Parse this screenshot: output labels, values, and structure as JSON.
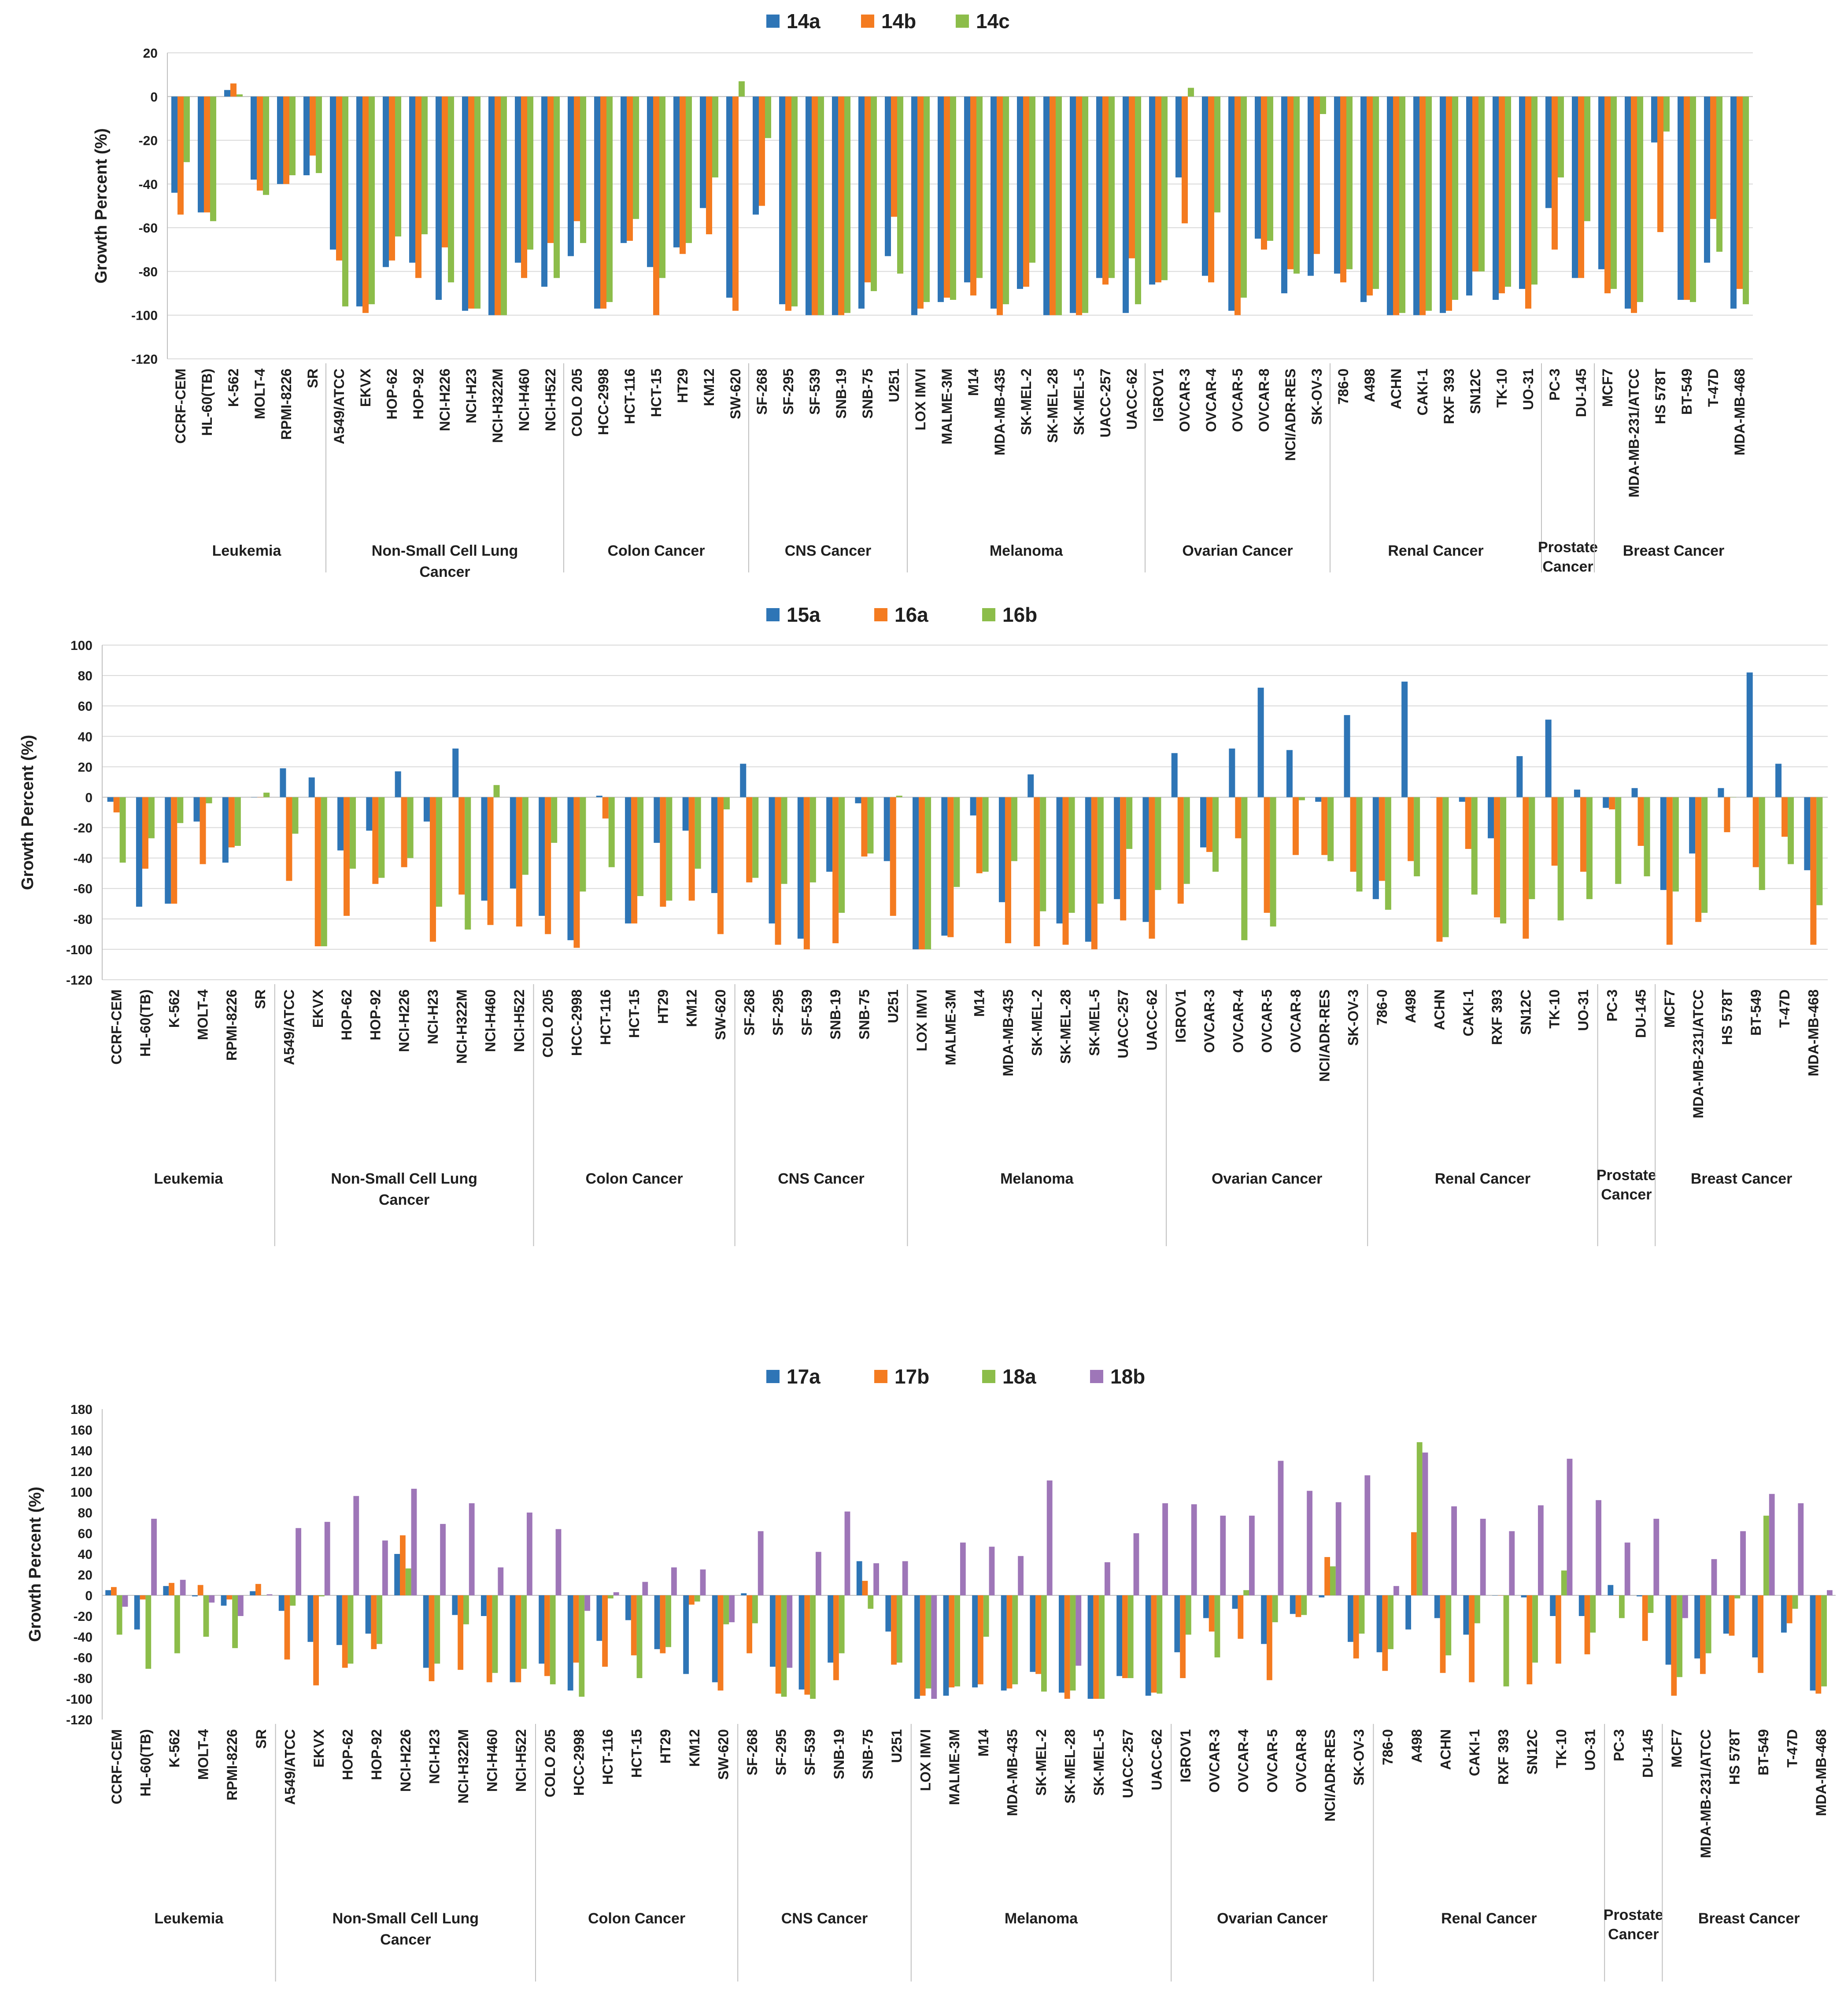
{
  "chart_data": [
    {
      "type": "bar",
      "title": "",
      "ylabel": "Growth Percent (%)",
      "xlabel": "",
      "ylim": [
        -120,
        20
      ],
      "yticks": [
        20,
        0,
        -20,
        -40,
        -60,
        -80,
        -100,
        -120
      ],
      "grid": true,
      "legend_position": "top-center",
      "categories": [
        "CCRF-CEM",
        "HL-60(TB)",
        "K-562",
        "MOLT-4",
        "RPMI-8226",
        "SR",
        "A549/ATCC",
        "EKVX",
        "HOP-62",
        "HOP-92",
        "NCI-H226",
        "NCI-H23",
        "NCI-H322M",
        "NCI-H460",
        "NCI-H522",
        "COLO 205",
        "HCC-2998",
        "HCT-116",
        "HCT-15",
        "HT29",
        "KM12",
        "SW-620",
        "SF-268",
        "SF-295",
        "SF-539",
        "SNB-19",
        "SNB-75",
        "U251",
        "LOX IMVI",
        "MALME-3M",
        "M14",
        "MDA-MB-435",
        "SK-MEL-2",
        "SK-MEL-28",
        "SK-MEL-5",
        "UACC-257",
        "UACC-62",
        "IGROV1",
        "OVCAR-3",
        "OVCAR-4",
        "OVCAR-5",
        "OVCAR-8",
        "NCI/ADR-RES",
        "SK-OV-3",
        "786-0",
        "A498",
        "ACHN",
        "CAKI-1",
        "RXF 393",
        "SN12C",
        "TK-10",
        "UO-31",
        "PC-3",
        "DU-145",
        "MCF7",
        "MDA-MB-231/ATCC",
        "HS 578T",
        "BT-549",
        "T-47D",
        "MDA-MB-468"
      ],
      "groups": [
        {
          "name": "Leukemia",
          "count": 6
        },
        {
          "name": "Non-Small Cell Lung Cancer",
          "count": 9
        },
        {
          "name": "Colon Cancer",
          "count": 7
        },
        {
          "name": "CNS Cancer",
          "count": 6
        },
        {
          "name": "Melanoma",
          "count": 9
        },
        {
          "name": "Ovarian Cancer",
          "count": 7
        },
        {
          "name": "Renal Cancer",
          "count": 8
        },
        {
          "name": "Prostate Cancer",
          "count": 2
        },
        {
          "name": "Breast Cancer",
          "count": 6
        }
      ],
      "series": [
        {
          "name": "14a",
          "color": "#2e75b6",
          "values": [
            -44,
            -53,
            3,
            -38,
            -40,
            -36,
            -70,
            -96,
            -78,
            -76,
            -93,
            -98,
            -100,
            -76,
            -87,
            -73,
            -97,
            -67,
            -78,
            -69,
            -51,
            -92,
            -54,
            -95,
            -100,
            -100,
            -97,
            -73,
            -100,
            -94,
            -85,
            -97,
            -88,
            -100,
            -99,
            -83,
            -99,
            -86,
            -37,
            -82,
            -98,
            -65,
            -90,
            -82,
            -81,
            -94,
            -100,
            -100,
            -99,
            -91,
            -93,
            -88,
            -51,
            -83,
            -79,
            -97,
            -21,
            -93,
            -76,
            -97
          ]
        },
        {
          "name": "14b",
          "color": "#f47b20",
          "values": [
            -54,
            -53,
            6,
            -43,
            -40,
            -27,
            -75,
            -99,
            -75,
            -83,
            -69,
            -97,
            -100,
            -83,
            -67,
            -57,
            -97,
            -66,
            -100,
            -72,
            -63,
            -98,
            -50,
            -98,
            -100,
            -100,
            -85,
            -55,
            -97,
            -92,
            -91,
            -100,
            -87,
            -100,
            -100,
            -86,
            -74,
            -85,
            -58,
            -85,
            -100,
            -70,
            -79,
            -72,
            -85,
            -91,
            -100,
            -100,
            -98,
            -80,
            -90,
            -97,
            -70,
            -83,
            -90,
            -99,
            -62,
            -93,
            -56,
            -88
          ]
        },
        {
          "name": "14c",
          "color": "#8cbd4a",
          "values": [
            -30,
            -57,
            1,
            -45,
            -36,
            -35,
            -96,
            -95,
            -64,
            -63,
            -85,
            -97,
            -100,
            -70,
            -83,
            -67,
            -94,
            -56,
            -83,
            -67,
            -37,
            7,
            -19,
            -96,
            -100,
            -99,
            -89,
            -81,
            -94,
            -93,
            -83,
            -95,
            -76,
            -100,
            -99,
            -83,
            -95,
            -84,
            4,
            -53,
            -92,
            -66,
            -81,
            -8,
            -79,
            -88,
            -99,
            -98,
            -93,
            -80,
            -87,
            -86,
            -37,
            -57,
            -88,
            -94,
            -16,
            -94,
            -71,
            -95
          ]
        }
      ]
    },
    {
      "type": "bar",
      "title": "",
      "ylabel": "Growth Percent (%)",
      "xlabel": "",
      "ylim": [
        -120,
        100
      ],
      "yticks": [
        100,
        80,
        60,
        40,
        20,
        0,
        -20,
        -40,
        -60,
        -80,
        -100,
        -120
      ],
      "grid": true,
      "legend_position": "top-center",
      "categories": [
        "CCRF-CEM",
        "HL-60(TB)",
        "K-562",
        "MOLT-4",
        "RPMI-8226",
        "SR",
        "A549/ATCC",
        "EKVX",
        "HOP-62",
        "HOP-92",
        "NCI-H226",
        "NCI-H23",
        "NCI-H322M",
        "NCI-H460",
        "NCI-H522",
        "COLO 205",
        "HCC-2998",
        "HCT-116",
        "HCT-15",
        "HT29",
        "KM12",
        "SW-620",
        "SF-268",
        "SF-295",
        "SF-539",
        "SNB-19",
        "SNB-75",
        "U251",
        "LOX IMVI",
        "MALME-3M",
        "M14",
        "MDA-MB-435",
        "SK-MEL-2",
        "SK-MEL-28",
        "SK-MEL-5",
        "UACC-257",
        "UACC-62",
        "IGROV1",
        "OVCAR-3",
        "OVCAR-4",
        "OVCAR-5",
        "OVCAR-8",
        "NCI/ADR-RES",
        "SK-OV-3",
        "786-0",
        "A498",
        "ACHN",
        "CAKI-1",
        "RXF 393",
        "SN12C",
        "TK-10",
        "UO-31",
        "PC-3",
        "DU-145",
        "MCF7",
        "MDA-MB-231/ATCC",
        "HS 578T",
        "BT-549",
        "T-47D",
        "MDA-MB-468"
      ],
      "groups": [
        {
          "name": "Leukemia",
          "count": 6
        },
        {
          "name": "Non-Small Cell Lung Cancer",
          "count": 9
        },
        {
          "name": "Colon Cancer",
          "count": 7
        },
        {
          "name": "CNS Cancer",
          "count": 6
        },
        {
          "name": "Melanoma",
          "count": 9
        },
        {
          "name": "Ovarian Cancer",
          "count": 7
        },
        {
          "name": "Renal Cancer",
          "count": 8
        },
        {
          "name": "Prostate Cancer",
          "count": 2
        },
        {
          "name": "Breast Cancer",
          "count": 6
        }
      ],
      "series": [
        {
          "name": "15a",
          "color": "#2e75b6",
          "values": [
            -3,
            -72,
            -70,
            -16,
            -43,
            0,
            19,
            13,
            -35,
            -22,
            17,
            -16,
            32,
            -68,
            -60,
            -78,
            -94,
            1,
            -83,
            -30,
            -22,
            -63,
            22,
            -83,
            -93,
            -49,
            -4,
            -42,
            -100,
            -91,
            -12,
            -69,
            15,
            -83,
            -95,
            -67,
            -82,
            29,
            -33,
            32,
            72,
            31,
            -3,
            54,
            -67,
            76,
            0,
            -3,
            -27,
            27,
            51,
            5,
            -7,
            6,
            -61,
            -37,
            6,
            82,
            22,
            -48
          ]
        },
        {
          "name": "16a",
          "color": "#f47b20",
          "values": [
            -10,
            -47,
            -70,
            -44,
            -33,
            0,
            -55,
            -98,
            -78,
            -57,
            -46,
            -95,
            -64,
            -84,
            -85,
            -90,
            -99,
            -14,
            -83,
            -72,
            -68,
            -90,
            -56,
            -97,
            -100,
            -96,
            -39,
            -78,
            -100,
            -92,
            -50,
            -96,
            -98,
            -97,
            -100,
            -81,
            -93,
            -70,
            -36,
            -27,
            -76,
            -38,
            -38,
            -49,
            -55,
            -42,
            -95,
            -34,
            -79,
            -93,
            -45,
            -49,
            -8,
            -32,
            -97,
            -82,
            -23,
            -46,
            -26,
            -97
          ]
        },
        {
          "name": "16b",
          "color": "#8cbd4a",
          "values": [
            -43,
            -27,
            -17,
            -4,
            -32,
            3,
            -24,
            -98,
            -47,
            -53,
            -40,
            -72,
            -87,
            8,
            -51,
            -30,
            -62,
            -46,
            -65,
            -68,
            -47,
            -8,
            -53,
            -57,
            -56,
            -76,
            -37,
            1,
            -100,
            -59,
            -49,
            -42,
            -75,
            -76,
            -70,
            -34,
            -61,
            -57,
            -49,
            -94,
            -85,
            -2,
            -42,
            -62,
            -74,
            -52,
            -92,
            -64,
            -83,
            -67,
            -81,
            -67,
            -57,
            -52,
            -62,
            -76,
            0,
            -61,
            -44,
            -71
          ]
        }
      ]
    },
    {
      "type": "bar",
      "title": "",
      "ylabel": "Growth Percent (%)",
      "xlabel": "",
      "ylim": [
        -120,
        180
      ],
      "yticks": [
        180,
        160,
        140,
        120,
        100,
        80,
        60,
        40,
        20,
        0,
        -20,
        -40,
        -60,
        -80,
        -100,
        -120
      ],
      "grid": false,
      "legend_position": "top-center",
      "categories": [
        "CCRF-CEM",
        "HL-60(TB)",
        "K-562",
        "MOLT-4",
        "RPMI-8226",
        "SR",
        "A549/ATCC",
        "EKVX",
        "HOP-62",
        "HOP-92",
        "NCI-H226",
        "NCI-H23",
        "NCI-H322M",
        "NCI-H460",
        "NCI-H522",
        "COLO 205",
        "HCC-2998",
        "HCT-116",
        "HCT-15",
        "HT29",
        "KM12",
        "SW-620",
        "SF-268",
        "SF-295",
        "SF-539",
        "SNB-19",
        "SNB-75",
        "U251",
        "LOX IMVI",
        "MALME-3M",
        "M14",
        "MDA-MB-435",
        "SK-MEL-2",
        "SK-MEL-28",
        "SK-MEL-5",
        "UACC-257",
        "UACC-62",
        "IGROV1",
        "OVCAR-3",
        "OVCAR-4",
        "OVCAR-5",
        "OVCAR-8",
        "NCI/ADR-RES",
        "SK-OV-3",
        "786-0",
        "A498",
        "ACHN",
        "CAKI-1",
        "RXF 393",
        "SN12C",
        "TK-10",
        "UO-31",
        "PC-3",
        "DU-145",
        "MCF7",
        "MDA-MB-231/ATCC",
        "HS 578T",
        "BT-549",
        "T-47D",
        "MDA-MB-468"
      ],
      "groups": [
        {
          "name": "Leukemia",
          "count": 6
        },
        {
          "name": "Non-Small Cell Lung Cancer",
          "count": 9
        },
        {
          "name": "Colon Cancer",
          "count": 7
        },
        {
          "name": "CNS Cancer",
          "count": 6
        },
        {
          "name": "Melanoma",
          "count": 9
        },
        {
          "name": "Ovarian Cancer",
          "count": 7
        },
        {
          "name": "Renal Cancer",
          "count": 8
        },
        {
          "name": "Prostate Cancer",
          "count": 2
        },
        {
          "name": "Breast Cancer",
          "count": 6
        }
      ],
      "series": [
        {
          "name": "17a",
          "color": "#2e75b6",
          "values": [
            5,
            -33,
            9,
            -1,
            -10,
            4,
            -15,
            -45,
            -48,
            -37,
            40,
            -70,
            -19,
            -20,
            -84,
            -66,
            -92,
            -44,
            -24,
            -52,
            -76,
            -84,
            2,
            -69,
            -91,
            -65,
            33,
            -35,
            -100,
            -97,
            -89,
            -92,
            -74,
            -94,
            -100,
            -78,
            -97,
            -55,
            -22,
            -13,
            -47,
            -18,
            -2,
            -45,
            -55,
            -33,
            -22,
            -38,
            0,
            -2,
            -20,
            -20,
            10,
            -1,
            -67,
            -61,
            -37,
            -60,
            -36,
            -92
          ]
        },
        {
          "name": "17b",
          "color": "#f47b20",
          "values": [
            8,
            -4,
            12,
            10,
            -4,
            11,
            -62,
            -87,
            -70,
            -52,
            58,
            -83,
            -72,
            -84,
            -84,
            -78,
            -65,
            -69,
            -58,
            -56,
            -9,
            -92,
            -56,
            -95,
            -96,
            -82,
            14,
            -67,
            -97,
            -89,
            -86,
            -90,
            -76,
            -100,
            -100,
            -80,
            -94,
            -80,
            -35,
            -42,
            -82,
            -21,
            37,
            -61,
            -73,
            61,
            -75,
            -84,
            0,
            -86,
            -66,
            -57,
            0,
            -44,
            -97,
            -76,
            -39,
            -75,
            -27,
            -95
          ]
        },
        {
          "name": "18a",
          "color": "#8cbd4a",
          "values": [
            -38,
            -71,
            -56,
            -40,
            -51,
            0,
            -10,
            -1,
            -66,
            -47,
            26,
            -66,
            -28,
            -75,
            -71,
            -86,
            -98,
            -3,
            -80,
            -50,
            -6,
            -28,
            -27,
            -98,
            -100,
            -56,
            -13,
            -65,
            -90,
            -88,
            -40,
            -86,
            -93,
            -92,
            -100,
            -80,
            -95,
            -38,
            -60,
            5,
            -26,
            -19,
            28,
            -37,
            -52,
            148,
            -58,
            -27,
            -88,
            -65,
            24,
            -36,
            -22,
            -17,
            -79,
            -56,
            -3,
            77,
            -13,
            -88
          ]
        },
        {
          "name": "18b",
          "color": "#9e76b8",
          "values": [
            -11,
            74,
            15,
            -7,
            -20,
            1,
            65,
            71,
            96,
            53,
            103,
            69,
            89,
            27,
            80,
            64,
            -15,
            3,
            13,
            27,
            25,
            -26,
            62,
            -70,
            42,
            81,
            31,
            33,
            -100,
            51,
            47,
            38,
            111,
            -68,
            32,
            60,
            89,
            88,
            77,
            77,
            130,
            101,
            90,
            116,
            9,
            138,
            86,
            74,
            62,
            87,
            132,
            92,
            51,
            74,
            -22,
            35,
            62,
            98,
            89,
            5
          ]
        }
      ]
    }
  ]
}
